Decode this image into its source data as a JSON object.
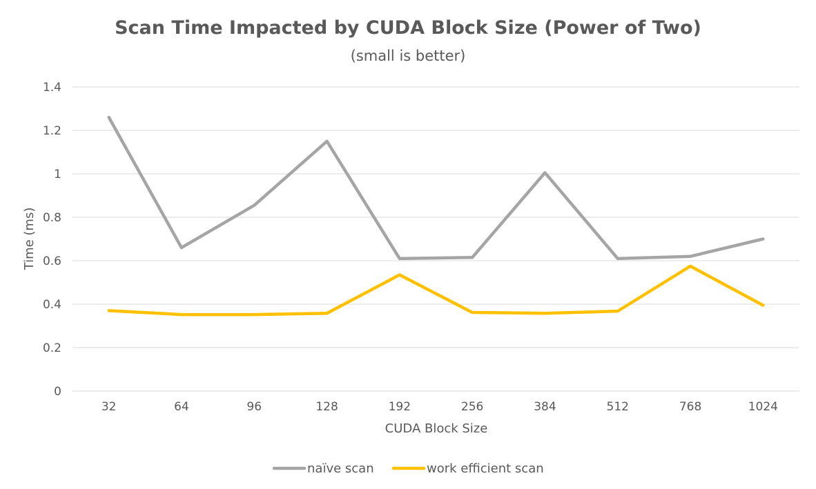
{
  "chart_data": {
    "type": "line",
    "title": "Scan Time Impacted by CUDA Block Size (Power of Two)",
    "subtitle": "(small is better)",
    "xlabel": "CUDA Block Size",
    "ylabel": "Time (ms)",
    "categories": [
      "32",
      "64",
      "96",
      "128",
      "192",
      "256",
      "384",
      "512",
      "768",
      "1024"
    ],
    "ylim": [
      0,
      1.4
    ],
    "yticks": [
      "0",
      "0.2",
      "0.4",
      "0.6",
      "0.8",
      "1",
      "1.2",
      "1.4"
    ],
    "grid": true,
    "legend_position": "bottom",
    "series": [
      {
        "name": "naïve scan",
        "color": "#a5a5a5",
        "values": [
          1.26,
          0.66,
          0.855,
          1.15,
          0.61,
          0.615,
          1.005,
          0.61,
          0.62,
          0.7
        ]
      },
      {
        "name": "work efficient scan",
        "color": "#ffc000",
        "values": [
          0.37,
          0.352,
          0.352,
          0.358,
          0.535,
          0.362,
          0.358,
          0.368,
          0.575,
          0.395
        ]
      }
    ]
  }
}
